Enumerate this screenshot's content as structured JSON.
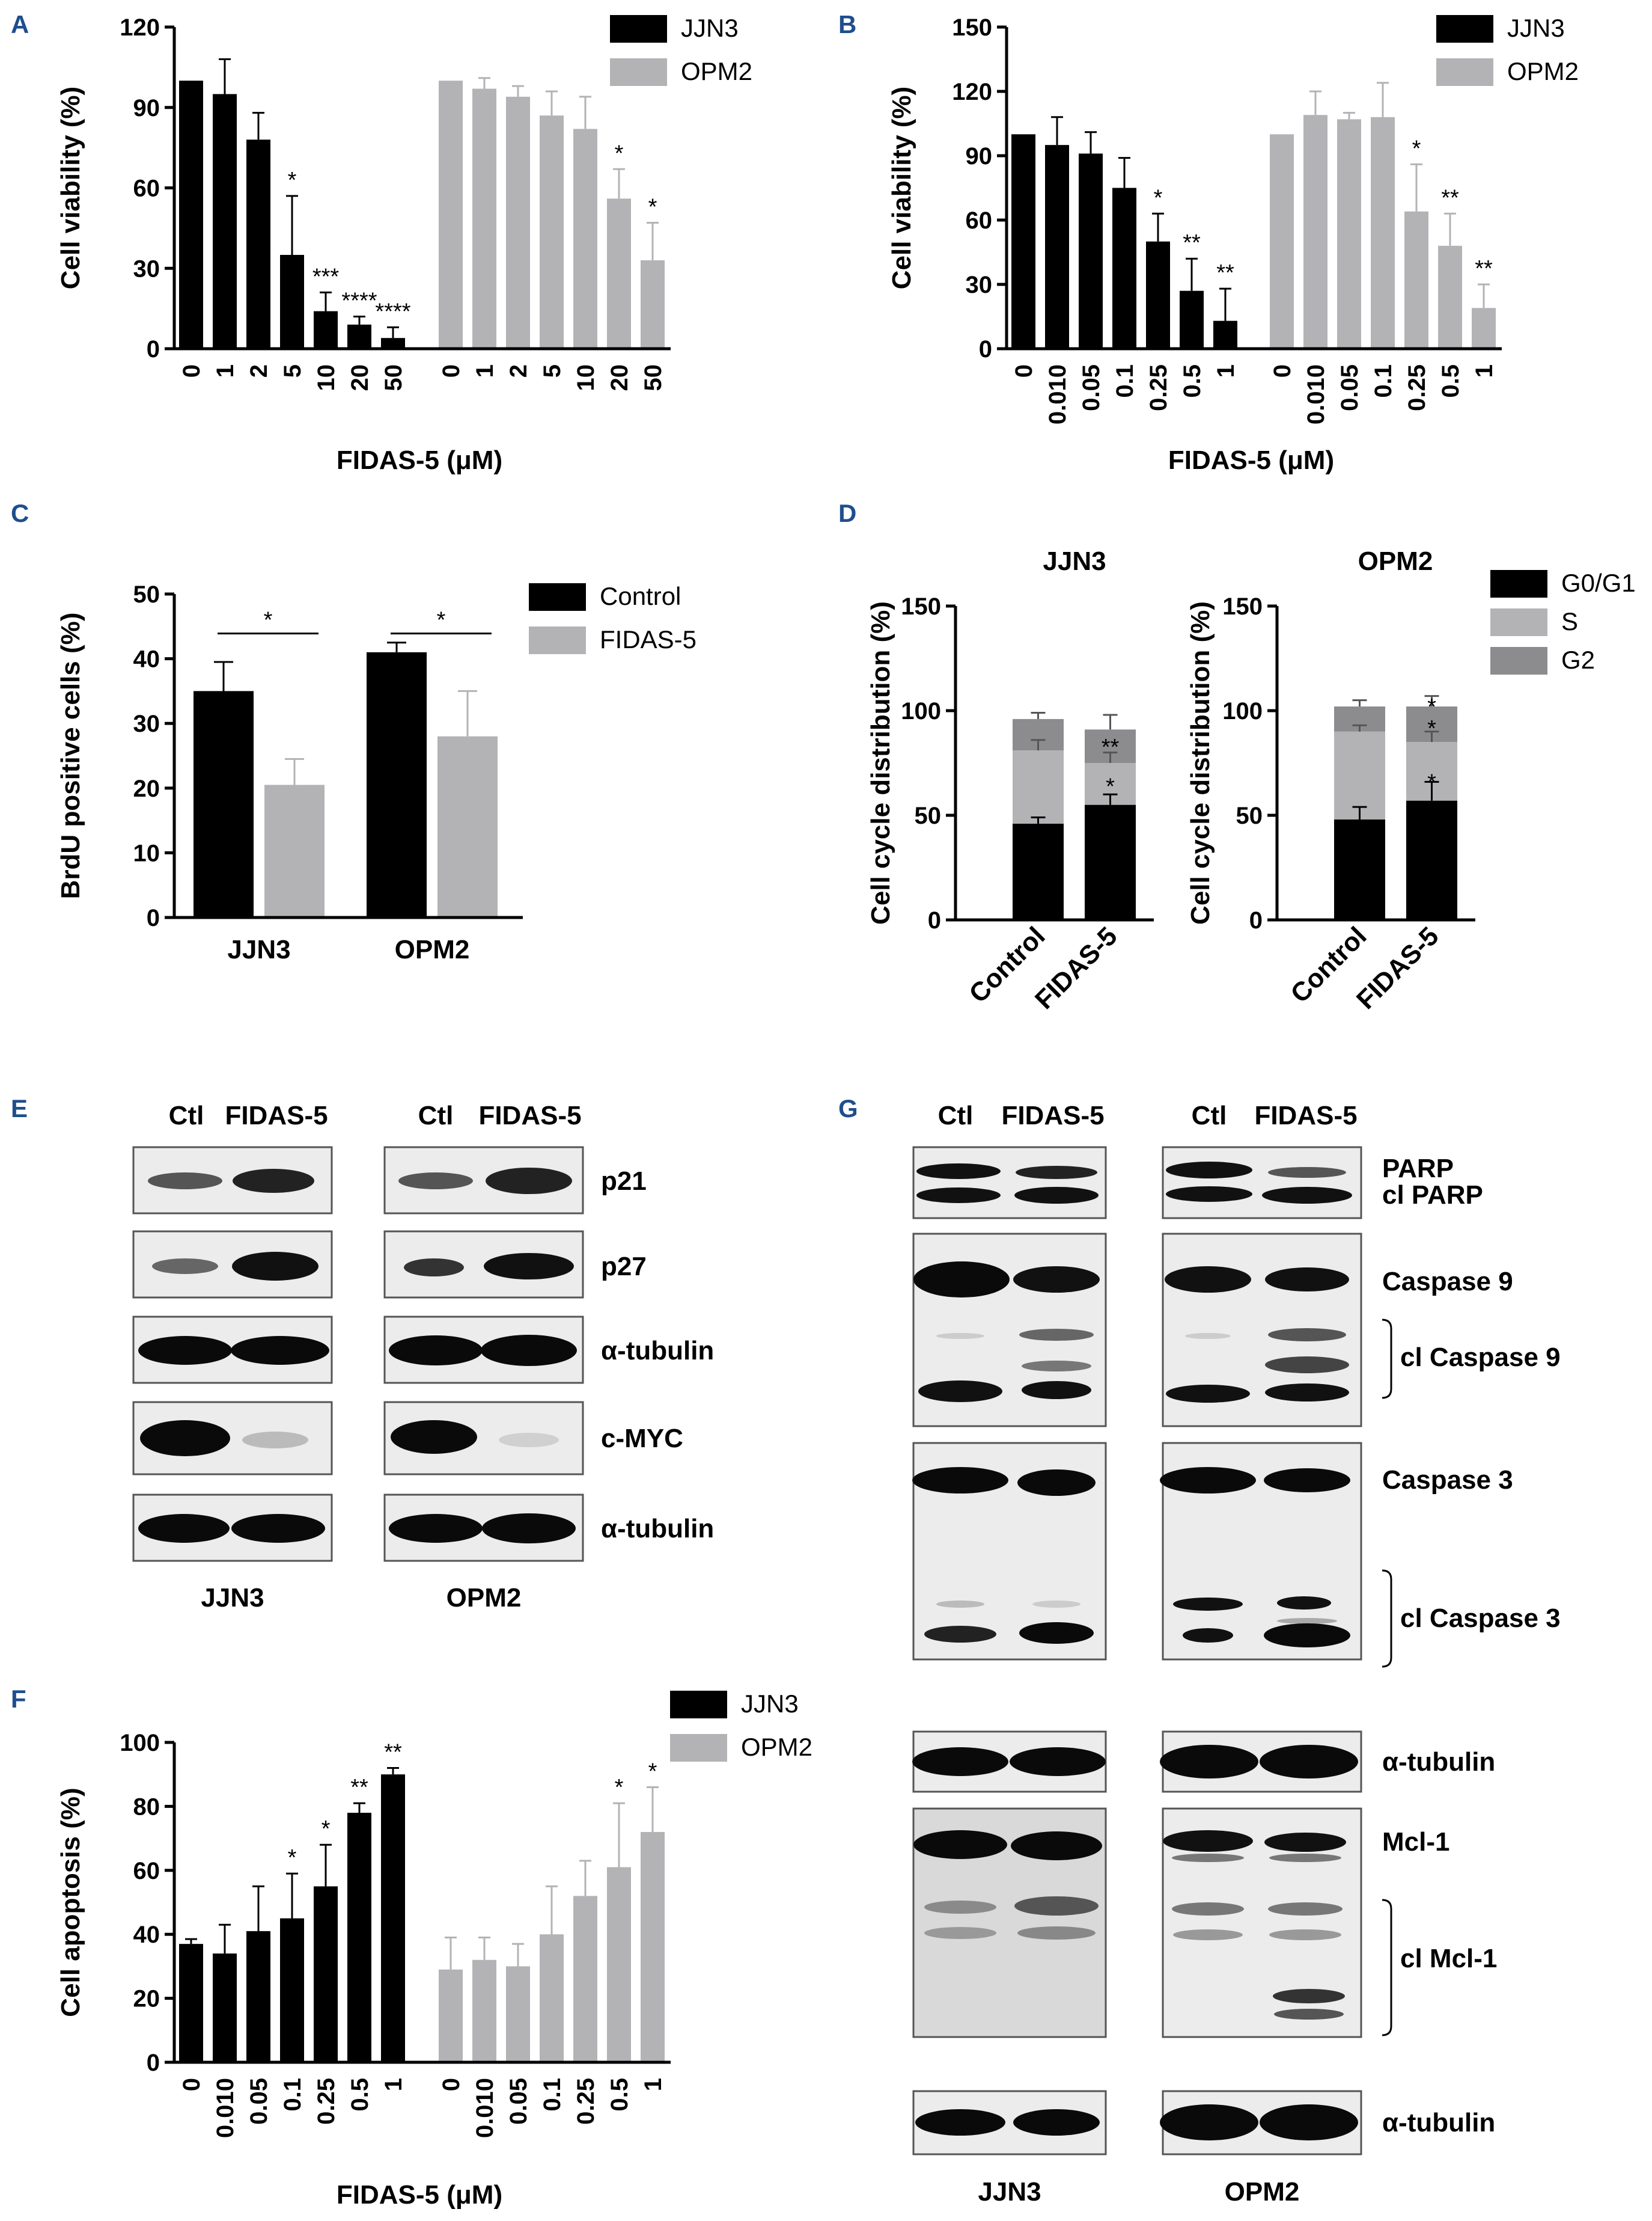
{
  "panel_letters": [
    "A",
    "B",
    "C",
    "D",
    "E",
    "F",
    "G"
  ],
  "colors": {
    "black": "#000000",
    "gray": "#b3b3b6",
    "darkgray": "#8c8c8f",
    "panel_letter": "#1f4e8c"
  },
  "chart_data": [
    {
      "id": "A",
      "type": "bar",
      "ylabel": "Cell viability (%)",
      "xlabel": "FIDAS-5 (μM)",
      "ylim": [
        0,
        120
      ],
      "yticks": [
        "0",
        "30",
        "60",
        "90",
        "120"
      ],
      "legend": [
        "JJN3",
        "OPM2"
      ],
      "series": [
        {
          "name": "JJN3",
          "color": "#000000",
          "categories": [
            "0",
            "1",
            "2",
            "5",
            "10",
            "20",
            "50"
          ],
          "values": [
            100,
            95,
            78,
            35,
            14,
            9,
            4
          ],
          "errors": [
            0,
            13,
            10,
            22,
            7,
            3,
            4
          ],
          "stars": [
            "",
            "",
            "",
            "*",
            "***",
            "****",
            "****"
          ]
        },
        {
          "name": "OPM2",
          "color": "#b3b3b6",
          "categories": [
            "0",
            "1",
            "2",
            "5",
            "10",
            "20",
            "50"
          ],
          "values": [
            100,
            97,
            94,
            87,
            82,
            56,
            33
          ],
          "errors": [
            0,
            4,
            4,
            9,
            12,
            11,
            14
          ],
          "stars": [
            "",
            "",
            "",
            "",
            "",
            "*",
            "*"
          ]
        }
      ]
    },
    {
      "id": "B",
      "type": "bar",
      "ylabel": "Cell viability (%)",
      "xlabel": "FIDAS-5 (μM)",
      "ylim": [
        0,
        150
      ],
      "yticks": [
        "0",
        "30",
        "60",
        "90",
        "120",
        "150"
      ],
      "legend": [
        "JJN3",
        "OPM2"
      ],
      "series": [
        {
          "name": "JJN3",
          "color": "#000000",
          "categories": [
            "0",
            "0.010",
            "0.05",
            "0.1",
            "0.25",
            "0.5",
            "1"
          ],
          "values": [
            100,
            95,
            91,
            75,
            50,
            27,
            13
          ],
          "errors": [
            0,
            13,
            10,
            14,
            13,
            15,
            15
          ],
          "stars": [
            "",
            "",
            "",
            "",
            "*",
            "**",
            "**"
          ]
        },
        {
          "name": "OPM2",
          "color": "#b3b3b6",
          "categories": [
            "0",
            "0.010",
            "0.05",
            "0.1",
            "0.25",
            "0.5",
            "1"
          ],
          "values": [
            100,
            109,
            107,
            108,
            64,
            48,
            19
          ],
          "errors": [
            0,
            11,
            3,
            16,
            22,
            15,
            11
          ],
          "stars": [
            "",
            "",
            "",
            "",
            "*",
            "**",
            "**"
          ]
        }
      ]
    },
    {
      "id": "C",
      "type": "bar",
      "ylabel": "BrdU positive cells (%)",
      "ylim": [
        0,
        50
      ],
      "yticks": [
        "0",
        "10",
        "20",
        "30",
        "40",
        "50"
      ],
      "legend": [
        "Control",
        "FIDAS-5"
      ],
      "categories": [
        "JJN3",
        "OPM2"
      ],
      "series": [
        {
          "name": "Control",
          "color": "#000000",
          "values": [
            35,
            41
          ],
          "errors": [
            4.5,
            1.5
          ]
        },
        {
          "name": "FIDAS-5",
          "color": "#b3b3b6",
          "values": [
            20.5,
            28
          ],
          "errors": [
            4,
            7
          ]
        }
      ],
      "stars": [
        "*",
        "*"
      ]
    },
    {
      "id": "D",
      "type": "bar",
      "ylabel": "Cell cycle distribution (%)",
      "ylim": [
        0,
        150
      ],
      "yticks": [
        "0",
        "50",
        "100",
        "150"
      ],
      "legend": [
        "G0/G1",
        "S",
        "G2"
      ],
      "subplots": [
        {
          "title": "JJN3",
          "categories": [
            "Control",
            "FIDAS-5"
          ],
          "G0G1": [
            46,
            55
          ],
          "S": [
            35,
            20
          ],
          "G2": [
            15,
            16
          ],
          "err_g0g1": [
            3,
            5
          ],
          "err_s": [
            5,
            5
          ],
          "err_g2": [
            3,
            7
          ],
          "stars_g0g1": [
            "",
            ""
          ],
          "stars_s": [
            "",
            "*"
          ],
          "stars_g2": [
            "",
            "**"
          ]
        },
        {
          "title": "OPM2",
          "categories": [
            "Control",
            "FIDAS-5"
          ],
          "G0G1": [
            48,
            57
          ],
          "S": [
            42,
            28
          ],
          "G2": [
            12,
            17
          ],
          "err_g0g1": [
            6,
            9
          ],
          "err_s": [
            3,
            5
          ],
          "err_g2": [
            3,
            5
          ],
          "stars_g0g1": [
            "",
            ""
          ],
          "stars_s": [
            "",
            "*"
          ],
          "stars_g2": [
            "",
            "*\n*"
          ]
        }
      ]
    },
    {
      "id": "F",
      "type": "bar",
      "ylabel": "Cell apoptosis (%)",
      "xlabel": "FIDAS-5 (μM)",
      "ylim": [
        0,
        100
      ],
      "yticks": [
        "0",
        "20",
        "40",
        "60",
        "80",
        "100"
      ],
      "legend": [
        "JJN3",
        "OPM2"
      ],
      "series": [
        {
          "name": "JJN3",
          "color": "#000000",
          "categories": [
            "0",
            "0.010",
            "0.05",
            "0.1",
            "0.25",
            "0.5",
            "1"
          ],
          "values": [
            37,
            34,
            41,
            45,
            55,
            78,
            90
          ],
          "errors": [
            1.5,
            9,
            14,
            14,
            13,
            3,
            2
          ],
          "stars": [
            "",
            "",
            "",
            "*",
            "*",
            "**",
            "**"
          ]
        },
        {
          "name": "OPM2",
          "color": "#b3b3b6",
          "categories": [
            "0",
            "0.010",
            "0.05",
            "0.1",
            "0.25",
            "0.5",
            "1"
          ],
          "values": [
            29,
            32,
            30,
            40,
            52,
            61,
            72
          ],
          "errors": [
            10,
            7,
            7,
            15,
            11,
            20,
            14
          ],
          "stars": [
            "",
            "",
            "",
            "",
            "",
            "*",
            "*"
          ]
        }
      ]
    }
  ],
  "blot_E": {
    "columns": [
      "Ctl",
      "FIDAS-5",
      "Ctl",
      "FIDAS-5"
    ],
    "rows": [
      "p21",
      "p27",
      "α-tubulin",
      "c-MYC",
      "α-tubulin"
    ],
    "footer": [
      "JJN3",
      "OPM2"
    ]
  },
  "blot_G": {
    "columns": [
      "Ctl",
      "FIDAS-5",
      "Ctl",
      "FIDAS-5"
    ],
    "labels": [
      "PARP",
      "cl PARP",
      "Caspase 9",
      "cl Caspase 9",
      "Caspase 3",
      "cl Caspase 3",
      "α-tubulin",
      "Mcl-1",
      "cl Mcl-1",
      "α-tubulin"
    ],
    "footer": [
      "JJN3",
      "OPM2"
    ]
  }
}
